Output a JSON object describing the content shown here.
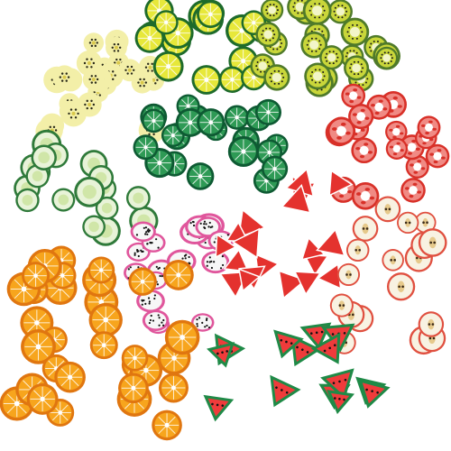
{
  "image": {
    "background": "#ffffff",
    "clusters": [
      {
        "kind": "banana",
        "count": 26
      },
      {
        "kind": "lemon",
        "count": 18
      },
      {
        "kind": "kiwi",
        "count": 22
      },
      {
        "kind": "lime",
        "count": 22
      },
      {
        "kind": "tomato",
        "count": 18
      },
      {
        "kind": "cucumber",
        "count": 18
      },
      {
        "kind": "dragonfruit",
        "count": 18
      },
      {
        "kind": "strawberry",
        "count": 20
      },
      {
        "kind": "apple",
        "count": 18
      },
      {
        "kind": "orange",
        "count": 32
      },
      {
        "kind": "watermelon",
        "count": 14
      }
    ],
    "colors": {
      "banana": "#f3efa8",
      "banana_seed": "#2a2a18",
      "lemon": "#e7e83a",
      "lemon_rind": "#1e6b2b",
      "kiwi": "#c9d63a",
      "kiwi_rind": "#4f7a2a",
      "lime": "#2e9a55",
      "lime_rind": "#0e5a33",
      "tomato": "#f08a84",
      "tomato_rind": "#d83028",
      "cucumber": "#e8f3d8",
      "cucumber_rind": "#2f7a3a",
      "dragonfruit": "#f7f7f7",
      "dragonfruit_rind": "#e0569c",
      "strawberry": "#e4322e",
      "apple": "#f8f2e2",
      "apple_rind": "#e05040",
      "orange": "#f7a51d",
      "orange_rind": "#e07610",
      "watermelon": "#ef3b3b",
      "watermelon_rind": "#1f8a47"
    }
  }
}
